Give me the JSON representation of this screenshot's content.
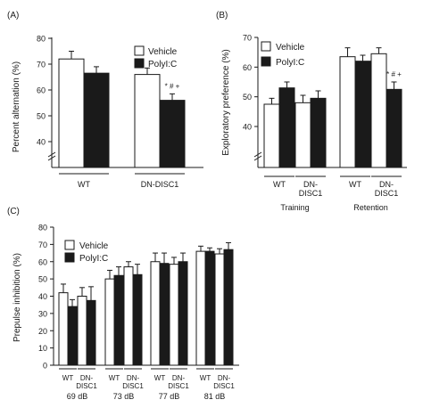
{
  "chart_data": [
    {
      "panel_label": "(A)",
      "type": "bar",
      "ylabel": "Percent alternation (%)",
      "ylim": [
        0,
        80
      ],
      "yticks": [
        "40",
        "50",
        "60",
        "70",
        "80"
      ],
      "axis_break": true,
      "groups": [
        {
          "label": "WT",
          "values": [
            72,
            66.5
          ],
          "errors": [
            3,
            2.5
          ]
        },
        {
          "label": "DN-DISC1",
          "values": [
            66,
            56
          ],
          "errors": [
            2.5,
            2.5
          ]
        }
      ],
      "series": [
        {
          "name": "Vehicle",
          "color": "#ffffff"
        },
        {
          "name": "PolyI:C",
          "color": "#1a1a1a"
        }
      ],
      "legend": "top-right",
      "annotations": [
        {
          "group": 1,
          "series": 1,
          "text": "* # +"
        }
      ]
    },
    {
      "panel_label": "(B)",
      "type": "bar",
      "ylabel": "Exploratory preference (%)",
      "ylim": [
        0,
        70
      ],
      "yticks": [
        "40",
        "50",
        "60",
        "70"
      ],
      "axis_break": true,
      "groups": [
        {
          "label": "WT",
          "values": [
            47.5,
            53
          ],
          "errors": [
            2,
            2
          ]
        },
        {
          "label": "DN-DISC1",
          "values": [
            48,
            49.5
          ],
          "errors": [
            2.5,
            2.5
          ]
        },
        {
          "label": "WT",
          "values": [
            63.5,
            62
          ],
          "errors": [
            3,
            2
          ]
        },
        {
          "label": "DN-DISC1",
          "values": [
            64.5,
            52.5
          ],
          "errors": [
            2,
            2.5
          ]
        }
      ],
      "group_labels": [
        {
          "label": "Training",
          "groups": [
            0,
            1
          ]
        },
        {
          "label": "Retention",
          "groups": [
            2,
            3
          ]
        }
      ],
      "series": [
        {
          "name": "Vehicle",
          "color": "#ffffff"
        },
        {
          "name": "PolyI:C",
          "color": "#1a1a1a"
        }
      ],
      "legend": "top-left",
      "annotations": [
        {
          "group": 3,
          "series": 1,
          "text": "* # +"
        }
      ]
    },
    {
      "panel_label": "(C)",
      "type": "bar",
      "ylabel": "Prepulse inhibition (%)",
      "ylim": [
        0,
        80
      ],
      "yticks": [
        "0",
        "10",
        "20",
        "30",
        "40",
        "50",
        "60",
        "70",
        "80"
      ],
      "axis_break": false,
      "groups": [
        {
          "label": "WT",
          "values": [
            42,
            34
          ],
          "errors": [
            5,
            4
          ]
        },
        {
          "label": "DN-DISC1",
          "values": [
            40,
            37.5
          ],
          "errors": [
            5,
            8
          ]
        },
        {
          "label": "WT",
          "values": [
            50,
            52
          ],
          "errors": [
            5,
            5
          ]
        },
        {
          "label": "DN-DISC1",
          "values": [
            57,
            52.5
          ],
          "errors": [
            3,
            6
          ]
        },
        {
          "label": "WT",
          "values": [
            60,
            59
          ],
          "errors": [
            5,
            6
          ]
        },
        {
          "label": "DN-DISC1",
          "values": [
            58.5,
            60
          ],
          "errors": [
            4,
            5
          ]
        },
        {
          "label": "WT",
          "values": [
            66,
            66
          ],
          "errors": [
            3,
            2
          ]
        },
        {
          "label": "DN-DISC1",
          "values": [
            64.5,
            67
          ],
          "errors": [
            3,
            4
          ]
        }
      ],
      "group_labels": [
        {
          "label": "69 dB",
          "groups": [
            0,
            1
          ]
        },
        {
          "label": "73 dB",
          "groups": [
            2,
            3
          ]
        },
        {
          "label": "77 dB",
          "groups": [
            4,
            5
          ]
        },
        {
          "label": "81 dB",
          "groups": [
            6,
            7
          ]
        }
      ],
      "series": [
        {
          "name": "Vehicle",
          "color": "#ffffff"
        },
        {
          "name": "PolyI:C",
          "color": "#1a1a1a"
        }
      ],
      "legend": "top-left"
    }
  ]
}
